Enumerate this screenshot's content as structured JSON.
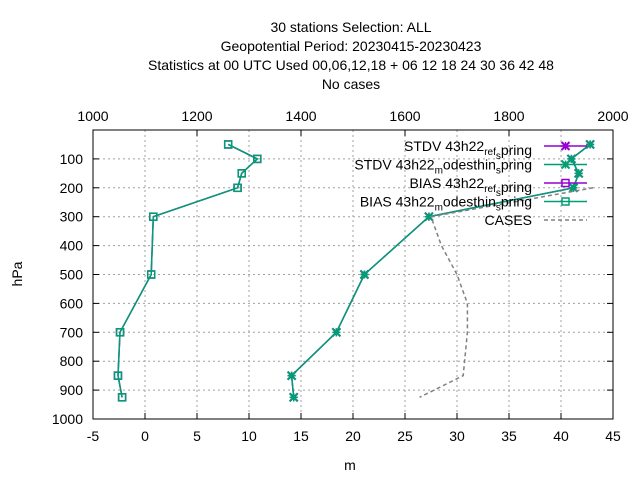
{
  "chart_data": {
    "type": "line",
    "title_lines": [
      "30 stations Selection: ALL",
      "Geopotential  Period: 20230415-20230423",
      "Statistics at 00 UTC  Used  00,06,12,18  + 06 12 18 24 30 36 42 48",
      "No cases"
    ],
    "xlabel": "m",
    "ylabel": "hPa",
    "x2label": "",
    "xlim": [
      -5,
      45
    ],
    "x2lim": [
      1000,
      2000
    ],
    "ylim": [
      1000,
      0
    ],
    "xticks": [
      "-5",
      "0",
      "5",
      "10",
      "15",
      "20",
      "25",
      "30",
      "35",
      "40",
      "45"
    ],
    "x2ticks": [
      "1000",
      "1200",
      "1400",
      "1600",
      "1800",
      "2000"
    ],
    "yticks": [
      "100",
      "200",
      "300",
      "400",
      "500",
      "600",
      "700",
      "800",
      "900",
      "1000"
    ],
    "grid": true,
    "legend_position": "top-right",
    "series": [
      {
        "name": "STDV 43h22_ref_spring",
        "name_parts": [
          "STDV 43h22",
          "ref",
          "s",
          "pring"
        ],
        "color": "#9400d3",
        "marker": "x",
        "axis": "bottom",
        "x": [
          42.8,
          41.0,
          41.7,
          41.2,
          27.3,
          21.1,
          18.4,
          14.1,
          14.3
        ],
        "y": [
          50,
          100,
          150,
          200,
          300,
          500,
          700,
          850,
          925
        ]
      },
      {
        "name": "STDV 43h22_modesthin_spring",
        "name_parts": [
          "STDV 43h22",
          "m",
          "odesthin",
          "s",
          "pring"
        ],
        "color": "#009e73",
        "marker": "x",
        "axis": "bottom",
        "x": [
          42.8,
          41.0,
          41.7,
          41.2,
          27.3,
          21.1,
          18.4,
          14.1,
          14.3
        ],
        "y": [
          50,
          100,
          150,
          200,
          300,
          500,
          700,
          850,
          925
        ]
      },
      {
        "name": "BIAS 43h22_ref_spring",
        "name_parts": [
          "BIAS 43h22",
          "ref",
          "s",
          "pring"
        ],
        "color": "#9400d3",
        "marker": "square",
        "axis": "bottom",
        "x": [
          8.0,
          10.8,
          9.3,
          8.9,
          0.8,
          0.6,
          -2.4,
          -2.6,
          -2.2
        ],
        "y": [
          50,
          100,
          150,
          200,
          300,
          500,
          700,
          850,
          925
        ]
      },
      {
        "name": "BIAS 43h22_modesthin_spring",
        "name_parts": [
          "BIAS 43h22",
          "m",
          "odesthin",
          "s",
          "pring"
        ],
        "color": "#009e73",
        "marker": "square",
        "axis": "bottom",
        "x": [
          8.0,
          10.8,
          9.3,
          8.9,
          0.8,
          0.6,
          -2.4,
          -2.6,
          -2.2
        ],
        "y": [
          50,
          100,
          150,
          200,
          300,
          500,
          700,
          850,
          925
        ]
      },
      {
        "name": "CASES",
        "name_parts": [
          "CASES"
        ],
        "color": "#808080",
        "marker": "none",
        "dashed": true,
        "axis": "top",
        "x": [
          1962,
          1650,
          1670,
          1700,
          1720,
          1720,
          1712,
          1628
        ],
        "y": [
          200,
          300,
          400,
          500,
          600,
          700,
          850,
          925
        ]
      }
    ]
  }
}
